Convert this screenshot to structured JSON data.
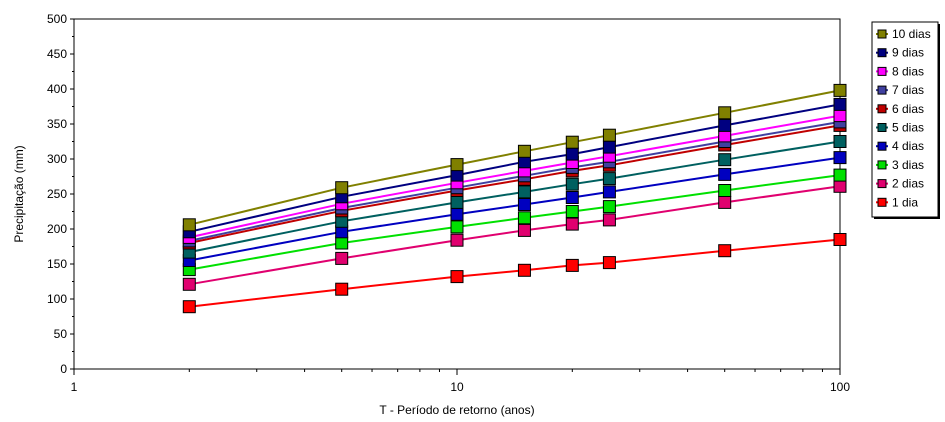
{
  "chart_data": {
    "type": "line",
    "title": "",
    "xlabel": "T - Período de retorno (anos)",
    "ylabel": "Precipitação (mm)",
    "x_scale": "log",
    "xlim": [
      1,
      100
    ],
    "ylim": [
      0,
      500
    ],
    "x_ticks": [
      1,
      10,
      100
    ],
    "x_tick_labels": [
      "1",
      "10",
      "100"
    ],
    "y_ticks": [
      0,
      50,
      100,
      150,
      200,
      250,
      300,
      350,
      400,
      450,
      500
    ],
    "y_tick_labels": [
      "0",
      "50",
      "100",
      "150",
      "200",
      "250",
      "300",
      "350",
      "400",
      "450",
      "500"
    ],
    "grid": false,
    "legend_position": "right",
    "x": [
      2,
      5,
      10,
      15,
      20,
      25,
      50,
      100
    ],
    "series": [
      {
        "name": "10 dias",
        "color": "#808000",
        "values": [
          206,
          259,
          292,
          311,
          324,
          334,
          366,
          398
        ]
      },
      {
        "name": "9 dias",
        "color": "#000080",
        "values": [
          196,
          246,
          277,
          296,
          307,
          317,
          348,
          378
        ]
      },
      {
        "name": "8 dias",
        "color": "#ff00ff",
        "values": [
          188,
          236,
          266,
          283,
          295,
          304,
          333,
          362
        ]
      },
      {
        "name": "7 dias",
        "color": "#4040a0",
        "values": [
          183,
          230,
          259,
          276,
          288,
          296,
          325,
          353
        ]
      },
      {
        "name": "6 dias",
        "color": "#c00000",
        "values": [
          180,
          226,
          255,
          271,
          283,
          291,
          320,
          348
        ]
      },
      {
        "name": "5 dias",
        "color": "#006060",
        "values": [
          167,
          211,
          238,
          253,
          264,
          272,
          299,
          325
        ]
      },
      {
        "name": "4 dias",
        "color": "#0000c0",
        "values": [
          155,
          196,
          221,
          235,
          245,
          253,
          278,
          302
        ]
      },
      {
        "name": "3 dias",
        "color": "#00e000",
        "values": [
          142,
          180,
          203,
          216,
          225,
          232,
          255,
          277
        ]
      },
      {
        "name": "2 dias",
        "color": "#e0006f",
        "values": [
          121,
          158,
          184,
          198,
          207,
          213,
          238,
          261
        ]
      },
      {
        "name": "1 dia",
        "color": "#ff0000",
        "values": [
          89,
          114,
          132,
          141,
          148,
          152,
          169,
          185
        ]
      }
    ]
  }
}
